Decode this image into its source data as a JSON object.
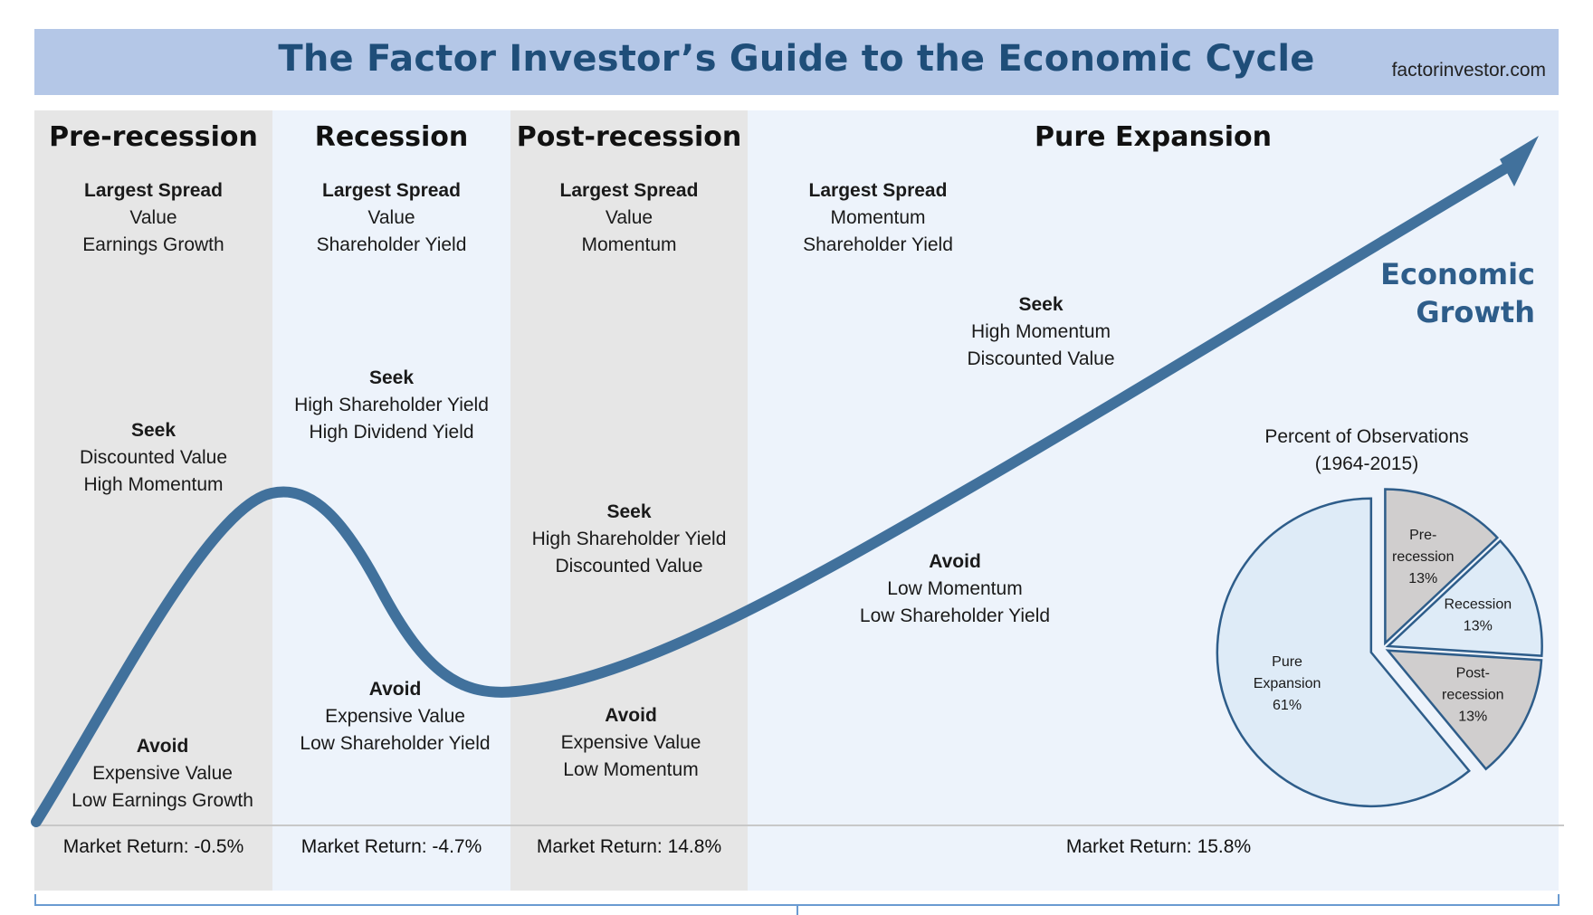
{
  "header": {
    "title": "The Factor Investor’s Guide to the Economic Cycle",
    "site": "factorinvestor.com"
  },
  "phases": [
    {
      "name": "Pre-recession",
      "largest_spread": {
        "heading": "Largest Spread",
        "items": [
          "Value",
          "Earnings Growth"
        ]
      },
      "seek": {
        "heading": "Seek",
        "items": [
          "Discounted Value",
          "High Momentum"
        ]
      },
      "avoid": {
        "heading": "Avoid",
        "items": [
          "Expensive Value",
          "Low Earnings Growth"
        ]
      },
      "market_return": "Market Return: -0.5%"
    },
    {
      "name": "Recession",
      "largest_spread": {
        "heading": "Largest Spread",
        "items": [
          "Value",
          "Shareholder Yield"
        ]
      },
      "seek": {
        "heading": "Seek",
        "items": [
          "High Shareholder Yield",
          "High Dividend Yield"
        ]
      },
      "avoid": {
        "heading": "Avoid",
        "items": [
          "Expensive Value",
          "Low Shareholder Yield"
        ]
      },
      "market_return": "Market Return: -4.7%"
    },
    {
      "name": "Post-recession",
      "largest_spread": {
        "heading": "Largest Spread",
        "items": [
          "Value",
          "Momentum"
        ]
      },
      "seek": {
        "heading": "Seek",
        "items": [
          "High Shareholder Yield",
          "Discounted Value"
        ]
      },
      "avoid": {
        "heading": "Avoid",
        "items": [
          "Expensive Value",
          "Low Momentum"
        ]
      },
      "market_return": "Market Return: 14.8%"
    },
    {
      "name": "Pure Expansion",
      "largest_spread": {
        "heading": "Largest Spread",
        "items": [
          "Momentum",
          "Shareholder Yield"
        ]
      },
      "seek": {
        "heading": "Seek",
        "items": [
          "High Momentum",
          "Discounted Value"
        ]
      },
      "avoid": {
        "heading": "Avoid",
        "items": [
          "Low Momentum",
          "Low Shareholder Yield"
        ]
      },
      "market_return": "Market Return: 15.8%"
    }
  ],
  "curve_label": [
    "Economic",
    "Growth"
  ],
  "pie": {
    "title": [
      "Percent of Observations",
      "(1964-2015)"
    ],
    "slices": [
      {
        "label": [
          "Pre-",
          "recession",
          "13%"
        ],
        "value": 13,
        "color": "#d0cece"
      },
      {
        "label": [
          "Recession",
          "13%"
        ],
        "value": 13,
        "color": "#deebf7"
      },
      {
        "label": [
          "Post-",
          "recession",
          "13%"
        ],
        "value": 13,
        "color": "#d0cece"
      },
      {
        "label": [
          "Pure",
          "Expansion",
          "61%"
        ],
        "value": 61,
        "color": "#deebf7"
      }
    ]
  },
  "colors": {
    "title_band": "#b4c7e7",
    "title_text": "#1f4e79",
    "curve": "#41719c",
    "gray_band": "#e6e6e6",
    "blue_band": "#edf3fb",
    "pie_stroke": "#2e5d8a"
  }
}
